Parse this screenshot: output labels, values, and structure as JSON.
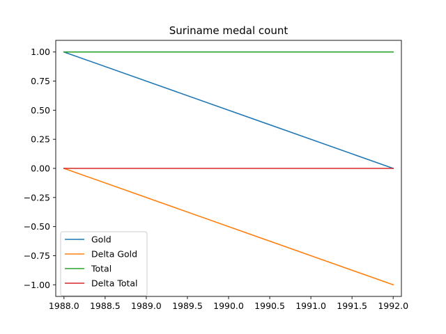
{
  "chart_data": {
    "type": "line",
    "title": "Suriname medal count",
    "xlabel": "",
    "ylabel": "",
    "xlim": [
      1987.9,
      1992.1
    ],
    "ylim": [
      -1.1,
      1.1
    ],
    "x_ticks": [
      "1988.0",
      "1988.5",
      "1989.0",
      "1989.5",
      "1990.0",
      "1990.5",
      "1991.0",
      "1991.5",
      "1992.0"
    ],
    "y_ticks": [
      "1.00",
      "0.75",
      "0.50",
      "0.25",
      "0.00",
      "−0.25",
      "−0.50",
      "−0.75",
      "−1.00"
    ],
    "x_tick_values": [
      1988.0,
      1988.5,
      1989.0,
      1989.5,
      1990.0,
      1990.5,
      1991.0,
      1991.5,
      1992.0
    ],
    "y_tick_values": [
      1.0,
      0.75,
      0.5,
      0.25,
      0.0,
      -0.25,
      -0.5,
      -0.75,
      -1.0
    ],
    "x": [
      1988,
      1992
    ],
    "series": [
      {
        "name": "Gold",
        "values": [
          1,
          0
        ],
        "color": "#1f77b4"
      },
      {
        "name": "Delta Gold",
        "values": [
          0,
          -1
        ],
        "color": "#ff7f0e"
      },
      {
        "name": "Total",
        "values": [
          1,
          1
        ],
        "color": "#2ca02c"
      },
      {
        "name": "Delta Total",
        "values": [
          0,
          0
        ],
        "color": "#d62728"
      }
    ],
    "grid": false,
    "legend_position": "lower-left"
  }
}
